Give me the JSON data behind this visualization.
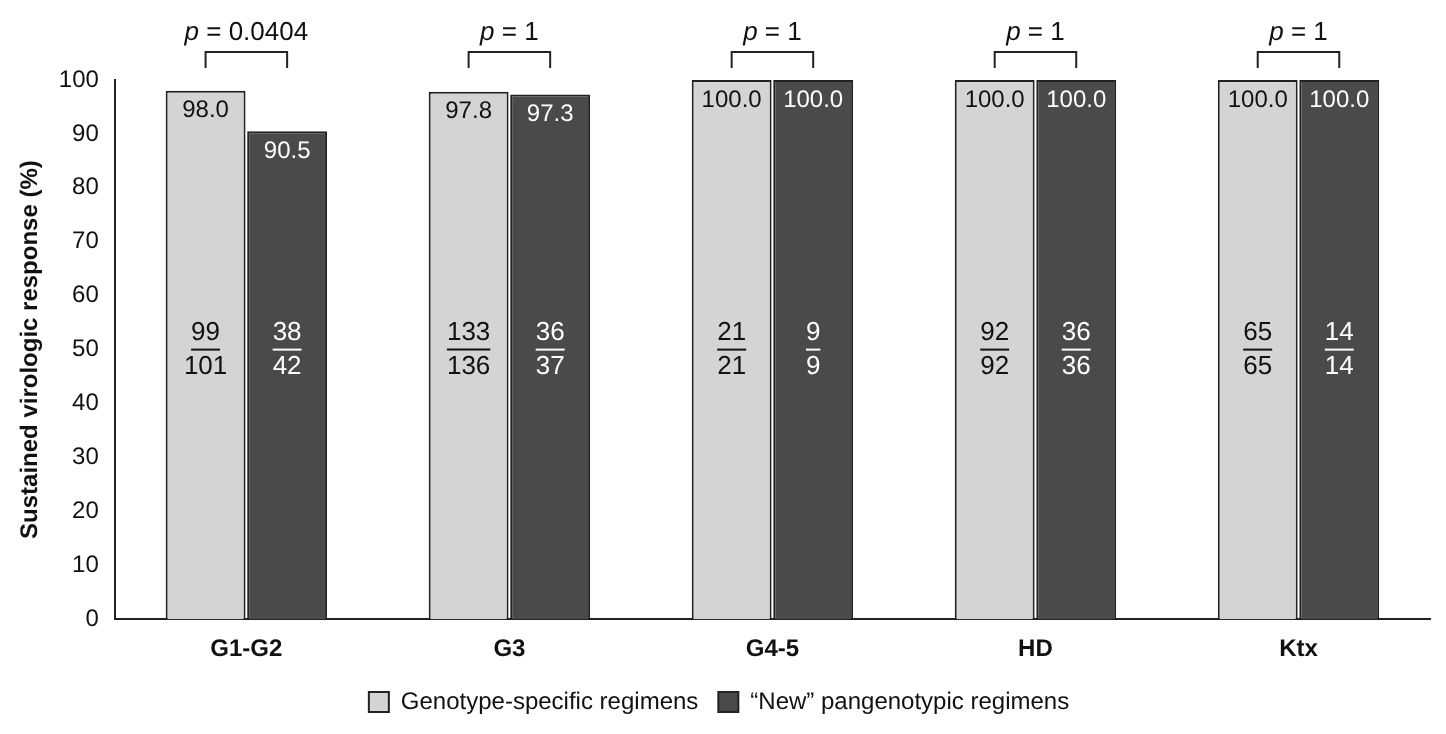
{
  "chart_data": {
    "type": "bar",
    "ylabel": "Sustained virologic response (%)",
    "categories": [
      "G1-G2",
      "G3",
      "G4-5",
      "HD",
      "Ktx"
    ],
    "series": [
      {
        "name": "Genotype-specific regimens",
        "color": "#d4d4d4",
        "values": [
          98.0,
          97.8,
          100.0,
          100.0,
          100.0
        ],
        "value_labels": [
          "98.0",
          "97.8",
          "100.0",
          "100.0",
          "100.0"
        ]
      },
      {
        "name": "“New” pangenotypic regimens",
        "color": "#4a4a4a",
        "values": [
          90.5,
          97.3,
          100.0,
          100.0,
          100.0
        ],
        "value_labels": [
          "90.5",
          "97.3",
          "100.0",
          "100.0",
          "100.0"
        ]
      }
    ],
    "ylim": [
      0,
      100
    ],
    "yticks": [
      0,
      10,
      20,
      30,
      40,
      50,
      60,
      70,
      80,
      90,
      100
    ],
    "grid": false,
    "legend": "bottom",
    "annotations": [
      "p = 0.0404",
      "p = 1",
      "p = 1",
      "p = 1",
      "p = 1",
      "99",
      "101",
      "38",
      "42",
      "133",
      "136",
      "36",
      "37",
      "21",
      "21",
      "9",
      "9",
      "92",
      "92",
      "36",
      "36",
      "65",
      "65",
      "14",
      "14"
    ]
  }
}
